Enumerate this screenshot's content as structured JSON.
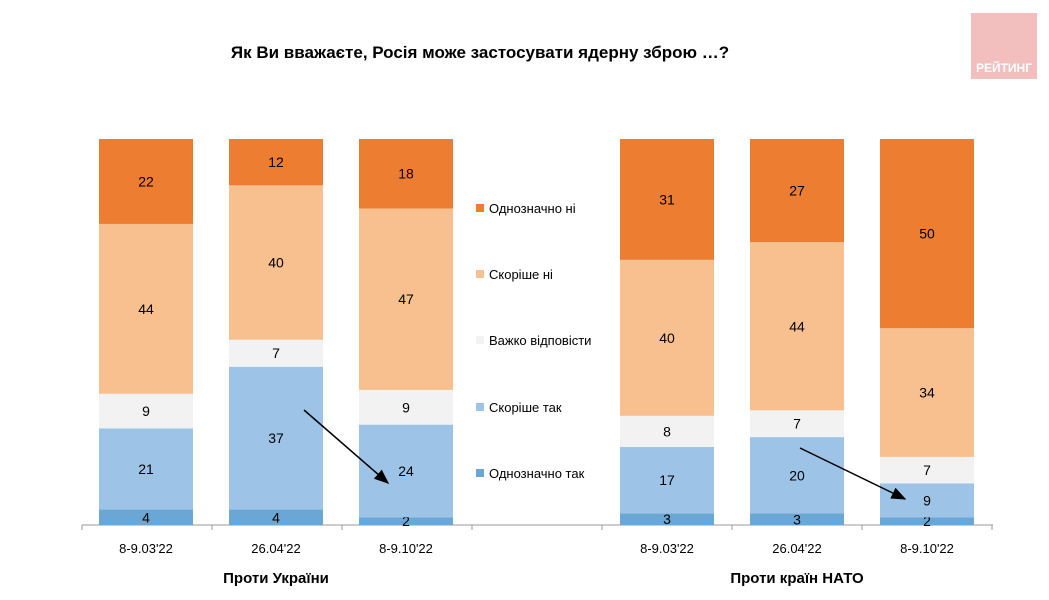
{
  "chart_data": {
    "type": "bar",
    "stacked": true,
    "normalized": true,
    "title": "Як Ви вважаєте, Росія може застосувати ядерну зброю …?",
    "groups": [
      {
        "label": "Проти України",
        "categories": [
          "8-9.03'22",
          "26.04'22",
          "8-9.10'22"
        ]
      },
      {
        "label": "Проти країн НАТО",
        "categories": [
          "8-9.03'22",
          "26.04'22",
          "8-9.10'22"
        ]
      }
    ],
    "series": [
      {
        "name": "Однозначно так",
        "color": "#6AA7D4",
        "values": [
          4,
          4,
          2,
          3,
          3,
          2
        ]
      },
      {
        "name": "Скоріше так",
        "color": "#9DC3E6",
        "values": [
          21,
          37,
          24,
          17,
          20,
          9
        ]
      },
      {
        "name": "Важко відповісти",
        "color": "#F2F2F2",
        "values": [
          9,
          7,
          9,
          8,
          7,
          7
        ]
      },
      {
        "name": "Скоріше ні",
        "color": "#F8BF8F",
        "values": [
          44,
          40,
          47,
          40,
          44,
          34
        ]
      },
      {
        "name": "Однозначно ні",
        "color": "#ED7D31",
        "values": [
          22,
          12,
          18,
          31,
          27,
          50
        ]
      }
    ],
    "legend_order": [
      "Однозначно ні",
      "Скоріше ні",
      "Важко відповісти",
      "Скоріше так",
      "Однозначно так"
    ],
    "legend_position": "center",
    "annotations": "arrows showing decrease in 'Скоріше так' from 26.04'22 to 8-9.10'22 in both groups"
  },
  "logo": {
    "text": "РЕЙТИНГ",
    "color": "#F2BEBE"
  }
}
